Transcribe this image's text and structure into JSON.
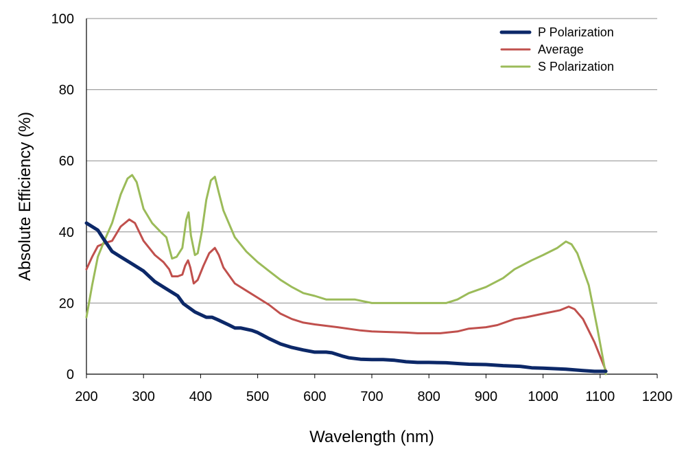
{
  "chart_data": {
    "type": "line",
    "xlabel": "Wavelength (nm)",
    "ylabel": "Absolute Efficiency (%)",
    "xlim": [
      200,
      1200
    ],
    "ylim": [
      0,
      100
    ],
    "x_ticks": [
      "200",
      "300",
      "400",
      "500",
      "600",
      "700",
      "800",
      "900",
      "1000",
      "1100",
      "1200"
    ],
    "y_ticks": [
      "0",
      "20",
      "40",
      "60",
      "80",
      "100"
    ],
    "grid": "horizontal",
    "legend_position": "top-right",
    "series": [
      {
        "name": "P Polarization",
        "color": "#0c2868",
        "points": [
          [
            200,
            42.5
          ],
          [
            220,
            40.5
          ],
          [
            230,
            38
          ],
          [
            245,
            34.5
          ],
          [
            260,
            33
          ],
          [
            280,
            31
          ],
          [
            300,
            29
          ],
          [
            320,
            26
          ],
          [
            335,
            24.5
          ],
          [
            350,
            23
          ],
          [
            360,
            22
          ],
          [
            370,
            19.8
          ],
          [
            390,
            17.5
          ],
          [
            410,
            16
          ],
          [
            420,
            16
          ],
          [
            430,
            15.3
          ],
          [
            450,
            13.8
          ],
          [
            460,
            13
          ],
          [
            470,
            13
          ],
          [
            490,
            12.3
          ],
          [
            500,
            11.7
          ],
          [
            520,
            10
          ],
          [
            540,
            8.5
          ],
          [
            560,
            7.5
          ],
          [
            580,
            6.8
          ],
          [
            600,
            6.2
          ],
          [
            620,
            6.2
          ],
          [
            630,
            6
          ],
          [
            650,
            5
          ],
          [
            660,
            4.6
          ],
          [
            680,
            4.2
          ],
          [
            700,
            4.1
          ],
          [
            720,
            4.1
          ],
          [
            740,
            3.9
          ],
          [
            760,
            3.5
          ],
          [
            780,
            3.3
          ],
          [
            800,
            3.3
          ],
          [
            830,
            3.2
          ],
          [
            850,
            3
          ],
          [
            870,
            2.8
          ],
          [
            900,
            2.7
          ],
          [
            930,
            2.4
          ],
          [
            960,
            2.2
          ],
          [
            980,
            1.8
          ],
          [
            1000,
            1.7
          ],
          [
            1040,
            1.4
          ],
          [
            1070,
            1
          ],
          [
            1090,
            0.8
          ],
          [
            1110,
            0.8
          ]
        ]
      },
      {
        "name": "Average",
        "color": "#c0504d",
        "points": [
          [
            200,
            29.5
          ],
          [
            210,
            33
          ],
          [
            220,
            36
          ],
          [
            235,
            37
          ],
          [
            245,
            37.5
          ],
          [
            260,
            41.5
          ],
          [
            275,
            43.5
          ],
          [
            285,
            42.5
          ],
          [
            300,
            37.5
          ],
          [
            320,
            33.5
          ],
          [
            335,
            31.5
          ],
          [
            345,
            29.5
          ],
          [
            350,
            27.5
          ],
          [
            360,
            27.5
          ],
          [
            368,
            28
          ],
          [
            373,
            30.5
          ],
          [
            378,
            32
          ],
          [
            382,
            30
          ],
          [
            388,
            25.5
          ],
          [
            395,
            26.5
          ],
          [
            405,
            30.5
          ],
          [
            415,
            34
          ],
          [
            425,
            35.5
          ],
          [
            432,
            33.5
          ],
          [
            440,
            30
          ],
          [
            460,
            25.5
          ],
          [
            480,
            23.5
          ],
          [
            500,
            21.5
          ],
          [
            520,
            19.5
          ],
          [
            540,
            17
          ],
          [
            560,
            15.5
          ],
          [
            580,
            14.5
          ],
          [
            600,
            14
          ],
          [
            640,
            13.2
          ],
          [
            680,
            12.3
          ],
          [
            700,
            12
          ],
          [
            720,
            11.9
          ],
          [
            760,
            11.7
          ],
          [
            780,
            11.5
          ],
          [
            820,
            11.5
          ],
          [
            850,
            12
          ],
          [
            870,
            12.8
          ],
          [
            900,
            13.2
          ],
          [
            920,
            13.8
          ],
          [
            950,
            15.5
          ],
          [
            970,
            16
          ],
          [
            1000,
            17
          ],
          [
            1030,
            18
          ],
          [
            1045,
            19
          ],
          [
            1055,
            18.3
          ],
          [
            1070,
            15.5
          ],
          [
            1090,
            9
          ],
          [
            1110,
            1
          ]
        ]
      },
      {
        "name": "S Polarization",
        "color": "#9bbb59",
        "points": [
          [
            200,
            16
          ],
          [
            210,
            25
          ],
          [
            220,
            33
          ],
          [
            230,
            37
          ],
          [
            245,
            42.5
          ],
          [
            260,
            50.5
          ],
          [
            272,
            55
          ],
          [
            280,
            56
          ],
          [
            288,
            54
          ],
          [
            300,
            46.5
          ],
          [
            315,
            42.5
          ],
          [
            330,
            40
          ],
          [
            340,
            38.5
          ],
          [
            350,
            32.5
          ],
          [
            358,
            33
          ],
          [
            368,
            35.5
          ],
          [
            375,
            43.5
          ],
          [
            379,
            45.5
          ],
          [
            383,
            39
          ],
          [
            390,
            33.5
          ],
          [
            395,
            34
          ],
          [
            402,
            40
          ],
          [
            410,
            49
          ],
          [
            418,
            54.5
          ],
          [
            425,
            55.5
          ],
          [
            432,
            51
          ],
          [
            440,
            46
          ],
          [
            460,
            38.5
          ],
          [
            480,
            34.5
          ],
          [
            500,
            31.5
          ],
          [
            520,
            29
          ],
          [
            540,
            26.5
          ],
          [
            560,
            24.5
          ],
          [
            580,
            22.8
          ],
          [
            600,
            22
          ],
          [
            620,
            21
          ],
          [
            650,
            21
          ],
          [
            670,
            21
          ],
          [
            700,
            20
          ],
          [
            740,
            20
          ],
          [
            800,
            20
          ],
          [
            830,
            20
          ],
          [
            850,
            21
          ],
          [
            870,
            22.8
          ],
          [
            900,
            24.5
          ],
          [
            930,
            27
          ],
          [
            950,
            29.5
          ],
          [
            980,
            32
          ],
          [
            1000,
            33.5
          ],
          [
            1025,
            35.5
          ],
          [
            1040,
            37.3
          ],
          [
            1050,
            36.5
          ],
          [
            1060,
            34
          ],
          [
            1080,
            25
          ],
          [
            1095,
            13
          ],
          [
            1110,
            0
          ]
        ]
      }
    ]
  }
}
